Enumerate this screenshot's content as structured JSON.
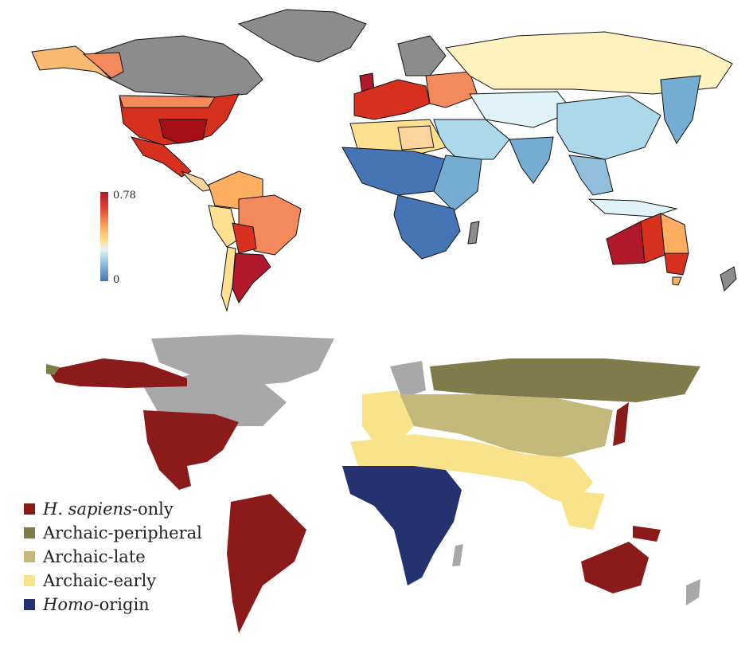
{
  "top_map": {
    "scale": {
      "max_label": "0.78",
      "min_label": "0"
    },
    "colors": {
      "high": "#b2182b",
      "mid": "#fee090",
      "low": "#4575b4",
      "nodata": "#8c8c8c"
    }
  },
  "bottom_map": {
    "legend": [
      {
        "italic": "H. sapiens",
        "rest": "-only",
        "color": "#8b1a1a"
      },
      {
        "italic": "",
        "rest": "Archaic-peripheral",
        "color": "#7f7b4a"
      },
      {
        "italic": "",
        "rest": "Archaic-late",
        "color": "#c3b77a"
      },
      {
        "italic": "",
        "rest": "Archaic-early",
        "color": "#f8e38a"
      },
      {
        "italic": "Homo",
        "rest": "-origin",
        "color": "#24336f"
      }
    ],
    "colors": {
      "nodata": "#a8a8a8"
    }
  }
}
